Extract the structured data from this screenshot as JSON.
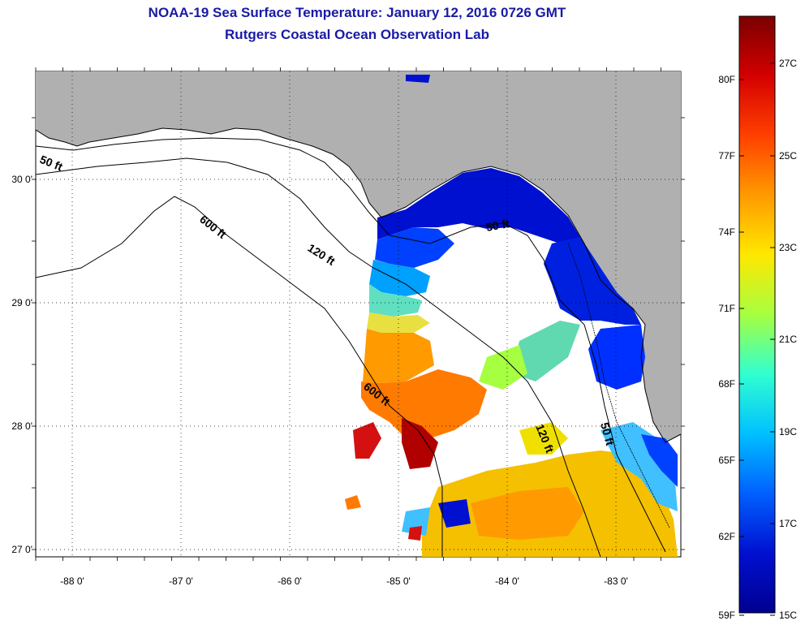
{
  "title": {
    "line1": "NOAA-19 Sea Surface Temperature:  January 12, 2016 0726 GMT",
    "line2": "Rutgers Coastal Ocean Observation Lab"
  },
  "map": {
    "lon_ticks": [
      {
        "value": -88,
        "label": "-88 0'"
      },
      {
        "value": -87,
        "label": "-87 0'"
      },
      {
        "value": -86,
        "label": "-86 0'"
      },
      {
        "value": -85,
        "label": "-85 0'"
      },
      {
        "value": -84,
        "label": "-84 0'"
      },
      {
        "value": -83,
        "label": "-83 0'"
      }
    ],
    "lat_ticks": [
      {
        "value": 30,
        "label": "30 0'"
      },
      {
        "value": 29,
        "label": "29 0'"
      },
      {
        "value": 28,
        "label": "28 0'"
      },
      {
        "value": 27,
        "label": "27 0'"
      }
    ],
    "contours": [
      {
        "label": "50 ft"
      },
      {
        "label": "600 ft"
      },
      {
        "label": "120 ft"
      },
      {
        "label": "50 ft"
      },
      {
        "label": "600 ft"
      },
      {
        "label": "120 ft"
      },
      {
        "label": "50 ft"
      }
    ],
    "colors": {
      "land": "#b0b0b0",
      "cloud": "#ffffff",
      "coast": "#000000"
    }
  },
  "colorbar": {
    "fahrenheit": [
      "80F",
      "77F",
      "74F",
      "71F",
      "68F",
      "65F",
      "62F",
      "59F"
    ],
    "celsius": [
      "27C",
      "25C",
      "23C",
      "21C",
      "19C",
      "17C",
      "15C"
    ],
    "stops": [
      "#7a0000",
      "#d40000",
      "#ff4000",
      "#ff9a00",
      "#ffe800",
      "#a6ff40",
      "#30ffd0",
      "#00c0ff",
      "#0060ff",
      "#0010d0",
      "#000090"
    ]
  }
}
